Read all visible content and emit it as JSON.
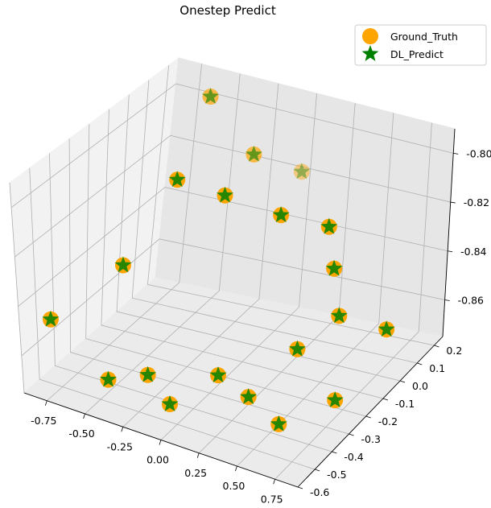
{
  "chart_data": {
    "type": "scatter",
    "projection": "3d",
    "title": "Onestep Predict",
    "xlabel": "",
    "ylabel": "",
    "zlabel": "",
    "xlim": [
      -0.9,
      0.9
    ],
    "ylim": [
      -0.6,
      0.25
    ],
    "zlim": [
      -0.875,
      -0.79
    ],
    "x_ticks": [
      "-0.75",
      "-0.50",
      "-0.25",
      "0.00",
      "0.25",
      "0.50",
      "0.75"
    ],
    "y_ticks": [
      "-0.6",
      "-0.5",
      "-0.4",
      "-0.3",
      "-0.2",
      "-0.1",
      "0.0",
      "0.1",
      "0.2"
    ],
    "z_ticks": [
      "-0.86",
      "-0.84",
      "-0.82",
      "-0.80"
    ],
    "grid": true,
    "legend_position": "top-right",
    "series": [
      {
        "name": "Ground_Truth",
        "marker": "circle",
        "color": "#FFA500",
        "points": [
          {
            "x": -0.5,
            "y": 0.1,
            "z": -0.79
          },
          {
            "x": -0.45,
            "y": -0.1,
            "z": -0.81
          },
          {
            "x": -0.5,
            "y": -0.35,
            "z": -0.83
          },
          {
            "x": -0.2,
            "y": -0.05,
            "z": -0.815
          },
          {
            "x": -0.2,
            "y": 0.1,
            "z": -0.808
          },
          {
            "x": 0.0,
            "y": 0.2,
            "z": -0.818
          },
          {
            "x": 0.05,
            "y": 0.05,
            "z": -0.825
          },
          {
            "x": 0.25,
            "y": 0.15,
            "z": -0.833
          },
          {
            "x": 0.35,
            "y": 0.1,
            "z": -0.845
          },
          {
            "x": 0.5,
            "y": 0.0,
            "z": -0.855
          },
          {
            "x": 0.4,
            "y": -0.15,
            "z": -0.86
          },
          {
            "x": 0.75,
            "y": 0.05,
            "z": -0.86
          },
          {
            "x": -0.5,
            "y": -0.45,
            "z": -0.87
          },
          {
            "x": -0.75,
            "y": -0.55,
            "z": -0.845
          },
          {
            "x": -0.4,
            "y": -0.3,
            "z": -0.875
          },
          {
            "x": -0.1,
            "y": -0.45,
            "z": -0.872
          },
          {
            "x": 0.25,
            "y": -0.3,
            "z": -0.872
          },
          {
            "x": 0.7,
            "y": -0.2,
            "z": -0.872
          },
          {
            "x": 0.5,
            "y": -0.35,
            "z": -0.875
          },
          {
            "x": -0.05,
            "y": -0.2,
            "z": -0.875
          }
        ]
      },
      {
        "name": "DL_Predict",
        "marker": "star",
        "color": "#008000",
        "points": [
          {
            "x": -0.5,
            "y": 0.1,
            "z": -0.79
          },
          {
            "x": -0.45,
            "y": -0.1,
            "z": -0.81
          },
          {
            "x": -0.5,
            "y": -0.35,
            "z": -0.83
          },
          {
            "x": -0.2,
            "y": -0.05,
            "z": -0.815
          },
          {
            "x": -0.2,
            "y": 0.1,
            "z": -0.808
          },
          {
            "x": 0.0,
            "y": 0.2,
            "z": -0.818
          },
          {
            "x": 0.05,
            "y": 0.05,
            "z": -0.825
          },
          {
            "x": 0.25,
            "y": 0.15,
            "z": -0.833
          },
          {
            "x": 0.35,
            "y": 0.1,
            "z": -0.845
          },
          {
            "x": 0.5,
            "y": 0.0,
            "z": -0.855
          },
          {
            "x": 0.4,
            "y": -0.15,
            "z": -0.86
          },
          {
            "x": 0.75,
            "y": 0.05,
            "z": -0.86
          },
          {
            "x": -0.5,
            "y": -0.45,
            "z": -0.87
          },
          {
            "x": -0.75,
            "y": -0.55,
            "z": -0.845
          },
          {
            "x": -0.4,
            "y": -0.3,
            "z": -0.875
          },
          {
            "x": -0.1,
            "y": -0.45,
            "z": -0.872
          },
          {
            "x": 0.25,
            "y": -0.3,
            "z": -0.872
          },
          {
            "x": 0.7,
            "y": -0.2,
            "z": -0.872
          },
          {
            "x": 0.5,
            "y": -0.35,
            "z": -0.875
          },
          {
            "x": -0.05,
            "y": -0.2,
            "z": -0.875
          }
        ]
      }
    ]
  }
}
